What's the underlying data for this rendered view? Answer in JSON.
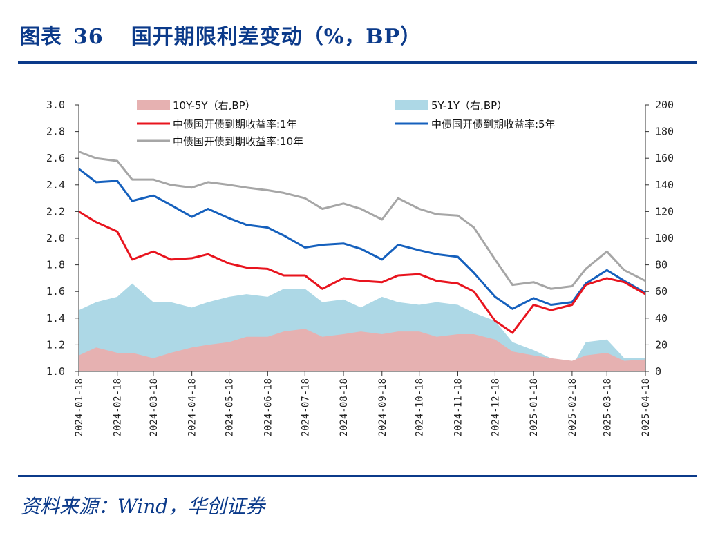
{
  "header": {
    "figure_label": "图表",
    "figure_number": "36",
    "title": "国开期限利差变动（%，BP）"
  },
  "footer": {
    "source": "资料来源：Wind，华创证券"
  },
  "chart_data": {
    "type": "line",
    "left_axis": {
      "ylim": [
        1.0,
        3.0
      ],
      "ticks": [
        "3.0",
        "2.8",
        "2.6",
        "2.4",
        "2.2",
        "2.0",
        "1.8",
        "1.6",
        "1.4",
        "1.2",
        "1.0"
      ]
    },
    "right_axis": {
      "ylim": [
        0,
        200
      ],
      "ticks": [
        "200",
        "180",
        "160",
        "140",
        "120",
        "100",
        "80",
        "60",
        "40",
        "20",
        "0"
      ]
    },
    "x_ticks": [
      "2024-01-18",
      "2024-02-18",
      "2024-03-18",
      "2024-04-18",
      "2024-05-18",
      "2024-06-18",
      "2024-07-18",
      "2024-08-18",
      "2024-09-18",
      "2024-10-18",
      "2024-11-18",
      "2024-12-18",
      "2025-01-18",
      "2025-02-18",
      "2025-03-18",
      "2025-04-18"
    ],
    "x_range": [
      "2024-01-18",
      "2025-04-18"
    ],
    "legend": [
      {
        "label": "10Y-5Y（右,BP）",
        "kind": "area",
        "color": "#e6b1b1"
      },
      {
        "label": "5Y-1Y（右,BP）",
        "kind": "area",
        "color": "#add8e6"
      },
      {
        "label": "中债国开债到期收益率:1年",
        "kind": "line",
        "color": "#e8141e"
      },
      {
        "label": "中债国开债到期收益率:5年",
        "kind": "line",
        "color": "#1560bd"
      },
      {
        "label": "中债国开债到期收益率:10年",
        "kind": "line",
        "color": "#a6a6a6"
      }
    ],
    "x": [
      "2024-01-18",
      "2024-02-01",
      "2024-02-18",
      "2024-03-01",
      "2024-03-18",
      "2024-04-01",
      "2024-04-18",
      "2024-05-01",
      "2024-05-18",
      "2024-06-01",
      "2024-06-18",
      "2024-07-01",
      "2024-07-18",
      "2024-08-01",
      "2024-08-18",
      "2024-09-01",
      "2024-09-18",
      "2024-10-01",
      "2024-10-18",
      "2024-11-01",
      "2024-11-18",
      "2024-12-01",
      "2024-12-18",
      "2025-01-01",
      "2025-01-18",
      "2025-02-01",
      "2025-02-18",
      "2025-03-01",
      "2025-03-18",
      "2025-04-01",
      "2025-04-18"
    ],
    "series": [
      {
        "name": "中债国开债到期收益率:1年",
        "axis": "left",
        "color": "#e8141e",
        "values": [
          2.2,
          2.12,
          2.05,
          1.84,
          1.9,
          1.84,
          1.85,
          1.88,
          1.81,
          1.78,
          1.77,
          1.72,
          1.72,
          1.62,
          1.7,
          1.68,
          1.67,
          1.72,
          1.73,
          1.68,
          1.66,
          1.6,
          1.38,
          1.29,
          1.5,
          1.46,
          1.5,
          1.65,
          1.7,
          1.67,
          1.58
        ]
      },
      {
        "name": "中债国开债到期收益率:5年",
        "axis": "left",
        "color": "#1560bd",
        "values": [
          2.52,
          2.42,
          2.43,
          2.28,
          2.32,
          2.25,
          2.16,
          2.22,
          2.15,
          2.1,
          2.08,
          2.02,
          1.93,
          1.95,
          1.96,
          1.92,
          1.84,
          1.95,
          1.91,
          1.88,
          1.86,
          1.74,
          1.56,
          1.47,
          1.55,
          1.5,
          1.52,
          1.66,
          1.76,
          1.68,
          1.59
        ]
      },
      {
        "name": "中债国开债到期收益率:10年",
        "axis": "left",
        "color": "#a6a6a6",
        "values": [
          2.65,
          2.6,
          2.58,
          2.44,
          2.44,
          2.4,
          2.38,
          2.42,
          2.4,
          2.38,
          2.36,
          2.34,
          2.3,
          2.22,
          2.26,
          2.22,
          2.14,
          2.3,
          2.22,
          2.18,
          2.17,
          2.08,
          1.84,
          1.65,
          1.67,
          1.62,
          1.64,
          1.77,
          1.9,
          1.76,
          1.68
        ]
      },
      {
        "name": "10Y-5Y（右,BP）",
        "axis": "right",
        "kind": "area",
        "color": "#e6b1b1",
        "values": [
          12,
          18,
          14,
          14,
          10,
          14,
          18,
          20,
          22,
          26,
          26,
          30,
          32,
          26,
          28,
          30,
          28,
          30,
          30,
          26,
          28,
          28,
          24,
          15,
          12,
          10,
          8,
          12,
          14,
          8,
          9
        ]
      },
      {
        "name": "5Y-1Y（右,BP）",
        "axis": "right",
        "kind": "area",
        "color": "#add8e6",
        "values": [
          46,
          52,
          56,
          66,
          52,
          52,
          48,
          52,
          56,
          58,
          56,
          62,
          62,
          52,
          54,
          48,
          56,
          52,
          50,
          52,
          50,
          44,
          38,
          22,
          16,
          10,
          4,
          22,
          24,
          10,
          10
        ]
      }
    ]
  }
}
